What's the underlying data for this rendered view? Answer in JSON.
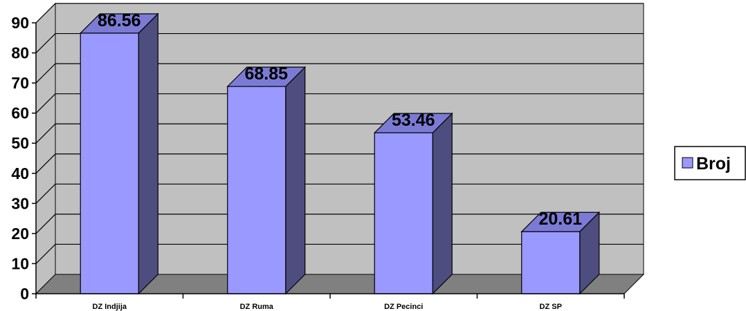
{
  "chart_data": {
    "type": "bar",
    "categories": [
      "DZ Indjija",
      "DZ Ruma",
      "DZ Pecinci",
      "DZ SP"
    ],
    "series": [
      {
        "name": "Broj",
        "values": [
          86.56,
          68.85,
          53.46,
          20.61
        ]
      }
    ],
    "data_labels": [
      "86.56",
      "68.85",
      "53.46",
      "20.61"
    ],
    "yticks": [
      "0",
      "10",
      "20",
      "30",
      "40",
      "50",
      "60",
      "70",
      "80",
      "90"
    ],
    "ylim": [
      0,
      90
    ],
    "grid": true,
    "legend_position": "right",
    "style": "3d-column",
    "colors": {
      "bar_front": "#9999ff",
      "bar_side": "#4d4d80",
      "bar_top": "#7b7bd6",
      "wall": "#c0c0c0",
      "floor": "#808080",
      "gridline": "#000000"
    }
  }
}
